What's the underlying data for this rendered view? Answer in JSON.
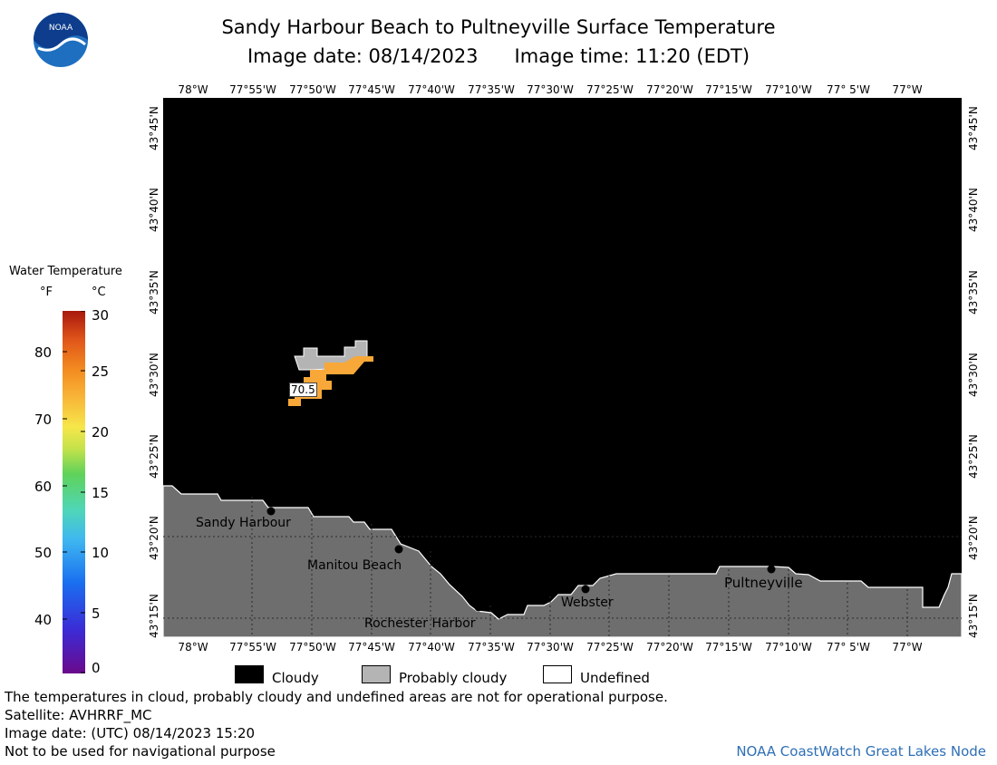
{
  "header": {
    "title": "Sandy Harbour Beach to Pultneyville Surface Temperature",
    "image_date": "Image date: 08/14/2023",
    "image_time": "Image time: 11:20 (EDT)"
  },
  "logo": {
    "text": "NOAA"
  },
  "axes": {
    "lon_labels": [
      "78°W",
      "77°55'W",
      "77°50'W",
      "77°45'W",
      "77°40'W",
      "77°35'W",
      "77°30'W",
      "77°25'W",
      "77°20'W",
      "77°15'W",
      "77°10'W",
      "77° 5'W",
      "77°W"
    ],
    "lat_labels": [
      "43°45'N",
      "43°40'N",
      "43°35'N",
      "43°30'N",
      "43°25'N",
      "43°20'N",
      "43°15'N"
    ]
  },
  "places": {
    "sandy_harbour": "Sandy Harbour",
    "manitou_beach": "Manitou Beach",
    "rochester_harbor": "Rochester Harbor",
    "webster": "Webster",
    "pultneyville": "Pultneyville"
  },
  "temp_label": "70.5",
  "colorbar": {
    "title": "Water Temperature",
    "unit_f": "°F",
    "unit_c": "°C",
    "f_ticks": [
      "80",
      "70",
      "60",
      "50",
      "40"
    ],
    "c_ticks": [
      "30",
      "25",
      "20",
      "15",
      "10",
      "5",
      "0"
    ]
  },
  "legend": {
    "cloudy": "Cloudy",
    "probably_cloudy": "Probably cloudy",
    "undefined": "Undefined"
  },
  "footer": {
    "disclaimer": "The temperatures in cloud, probably cloudy and undefined areas are not for operational purpose.",
    "satellite": "Satellite: AVHRRF_MC",
    "utc_date": "Image date: (UTC) 08/14/2023  15:20",
    "nav": "Not to be used for navigational purpose",
    "credit": "NOAA CoastWatch Great Lakes Node"
  },
  "colors": {
    "cloudy": "#000000",
    "land": "#6e6e6e",
    "probably_cloudy": "#b4b4b4",
    "warm_water": "#f8a838",
    "credit": "#2e6fb6"
  }
}
